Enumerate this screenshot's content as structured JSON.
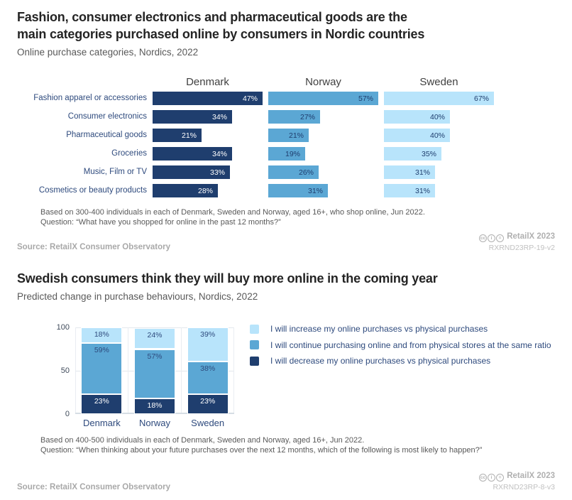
{
  "colors": {
    "dark_navy": "#1f3e6e",
    "mid_blue": "#5ba7d4",
    "light_blue": "#b8e4fb",
    "text_navy": "#2e4a7d"
  },
  "chart_data": [
    {
      "type": "bar",
      "orientation": "horizontal",
      "title": "Fashion, consumer electronics and pharmaceutical goods are the main categories purchased online by consumers in Nordic countries",
      "title_lines": [
        "Fashion, consumer electronics and pharmaceutical goods are the",
        "main categories purchased online by consumers in Nordic countries"
      ],
      "subtitle": "Online purchase categories, Nordics, 2022",
      "value_suffix": "%",
      "categories": [
        "Fashion apparel or accessories",
        "Consumer electronics",
        "Pharmaceutical goods",
        "Groceries",
        "Music, Film or TV",
        "Cosmetics or beauty products"
      ],
      "series": [
        {
          "name": "Denmark",
          "color": "#1f3e6e",
          "label_color": "#ffffff",
          "values": [
            47,
            34,
            21,
            34,
            33,
            28
          ]
        },
        {
          "name": "Norway",
          "color": "#5ba7d4",
          "label_color": "#1f3e6e",
          "values": [
            57,
            27,
            21,
            19,
            26,
            31
          ]
        },
        {
          "name": "Sweden",
          "color": "#b8e4fb",
          "label_color": "#1f3e6e",
          "values": [
            67,
            40,
            40,
            35,
            31,
            31
          ]
        }
      ],
      "layout_note": "three side-by-side columns, each column scaled so its largest value fills the column width",
      "grid": false,
      "legend_position": "column headers"
    },
    {
      "type": "bar",
      "subtype": "stacked",
      "title": "Swedish consumers think they will buy more online in the coming year",
      "subtitle": "Predicted change in purchase behaviours, Nordics, 2022",
      "value_suffix": "%",
      "categories": [
        "Denmark",
        "Norway",
        "Sweden"
      ],
      "ylim": [
        0,
        100
      ],
      "yticks": [
        100,
        50,
        0
      ],
      "grid": true,
      "legend_position": "right",
      "series": [
        {
          "name": "I will increase my online purchases vs physical purchases",
          "color": "#b8e4fb",
          "label_color": "#2e4a7d",
          "values": [
            18,
            24,
            39
          ]
        },
        {
          "name": "I will continue purchasing online and from physical stores at the same ratio",
          "color": "#5ba7d4",
          "label_color": "#2e4a7d",
          "values": [
            59,
            57,
            38
          ]
        },
        {
          "name": "I will decrease my online purchases vs physical purchases",
          "color": "#1f3e6e",
          "label_color": "#ffffff",
          "values": [
            23,
            18,
            23
          ]
        }
      ],
      "stack_note": "series listed top-to-bottom as stacked"
    }
  ],
  "footer1": {
    "note1": "Based on 300-400 individuals in each of Denmark, Sweden and Norway, aged 16+, who shop online, Jun 2022.",
    "note2": "Question: “What have you shopped for online in the past 12 months?”",
    "source": "Source: RetailX Consumer Observatory",
    "brand": "RetailX 2023",
    "code": "RXRND23RP-19-v2",
    "license_icons": {
      "cc": "cc",
      "by": "i",
      "nd": "="
    }
  },
  "footer2": {
    "note1": "Based on 400-500 individuals in each of Denmark, Sweden and Norway, aged 16+, Jun 2022.",
    "note2": "Question: “When thinking about your future purchases over the next 12 months, which of the following is most likely to happen?”",
    "source": "Source: RetailX Consumer Observatory",
    "brand": "RetailX 2023",
    "code": "RXRND23RP-8-v3",
    "license_icons": {
      "cc": "cc",
      "by": "i",
      "nd": "="
    }
  }
}
